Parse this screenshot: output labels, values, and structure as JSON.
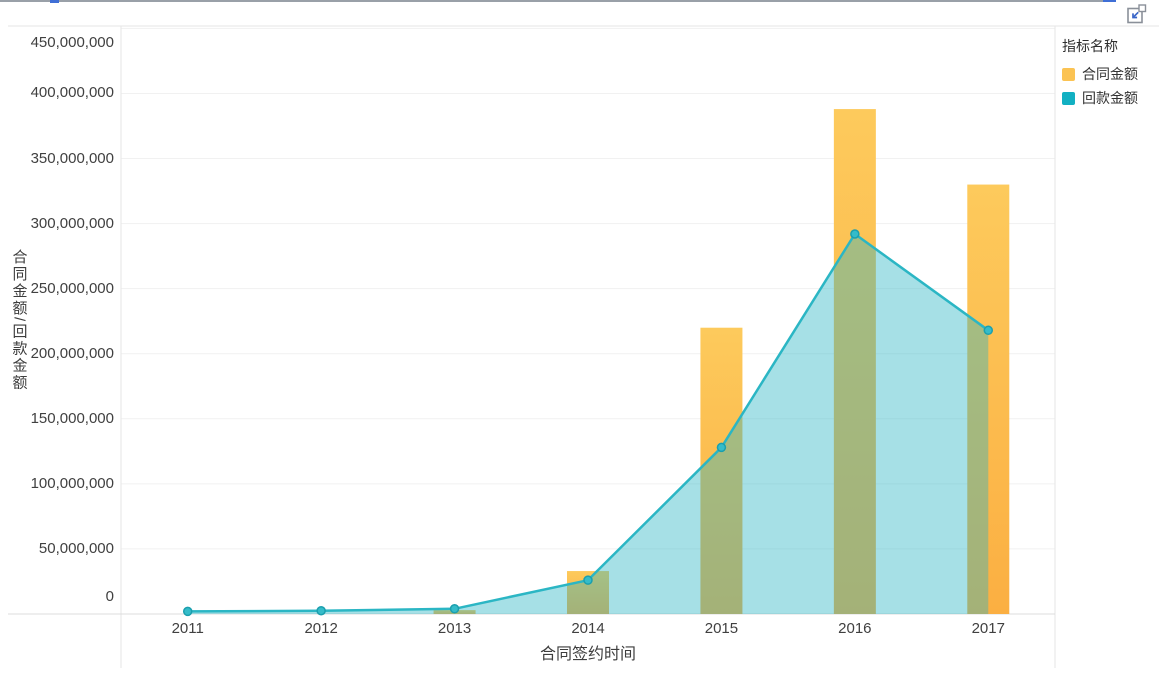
{
  "window": {
    "topbar_color": "#99A0A8",
    "accent_color": "#3F6FD6"
  },
  "toolbar": {
    "exit_fullscreen_icon": "exit-fullscreen-icon"
  },
  "ui_colors": {
    "plot_border": "#E6E6E6",
    "zero_axis_line": "#DCDCDC",
    "gridline": "#F1F1F1",
    "tick_text": "#404040"
  },
  "chart_data": {
    "type": "combo-bar-area-line",
    "categories": [
      "2011",
      "2012",
      "2013",
      "2014",
      "2015",
      "2016",
      "2017"
    ],
    "series": [
      {
        "name": "合同金额",
        "type": "bar",
        "legend_color": "#FBC353",
        "color_top": "#FDCA5C",
        "color_bottom": "#FBAF42",
        "values": [
          0,
          0,
          3000000,
          33000000,
          220000000,
          388000000,
          330000000
        ]
      },
      {
        "name": "回款金额",
        "type": "line-area",
        "legend_color": "#12B0C2",
        "color": "#2BB6C4",
        "dot_fill": "#35BCC9",
        "dot_stroke": "#1B9FAE",
        "area_opacity": 0.42,
        "values": [
          2000000,
          2500000,
          4000000,
          26000000,
          128000000,
          292000000,
          218000000
        ]
      }
    ],
    "title": "",
    "xlabel": "合同签约时间",
    "ylabel": "合同金额/回款金额",
    "ylim": [
      0,
      450000000
    ],
    "ytick_interval": 50000000,
    "ytick_labels": [
      "0",
      "50,000,000",
      "100,000,000",
      "150,000,000",
      "200,000,000",
      "250,000,000",
      "300,000,000",
      "350,000,000",
      "400,000,000",
      "450,000,000"
    ],
    "grid": true,
    "legend": {
      "title": "指标名称",
      "position": "top-right"
    }
  }
}
